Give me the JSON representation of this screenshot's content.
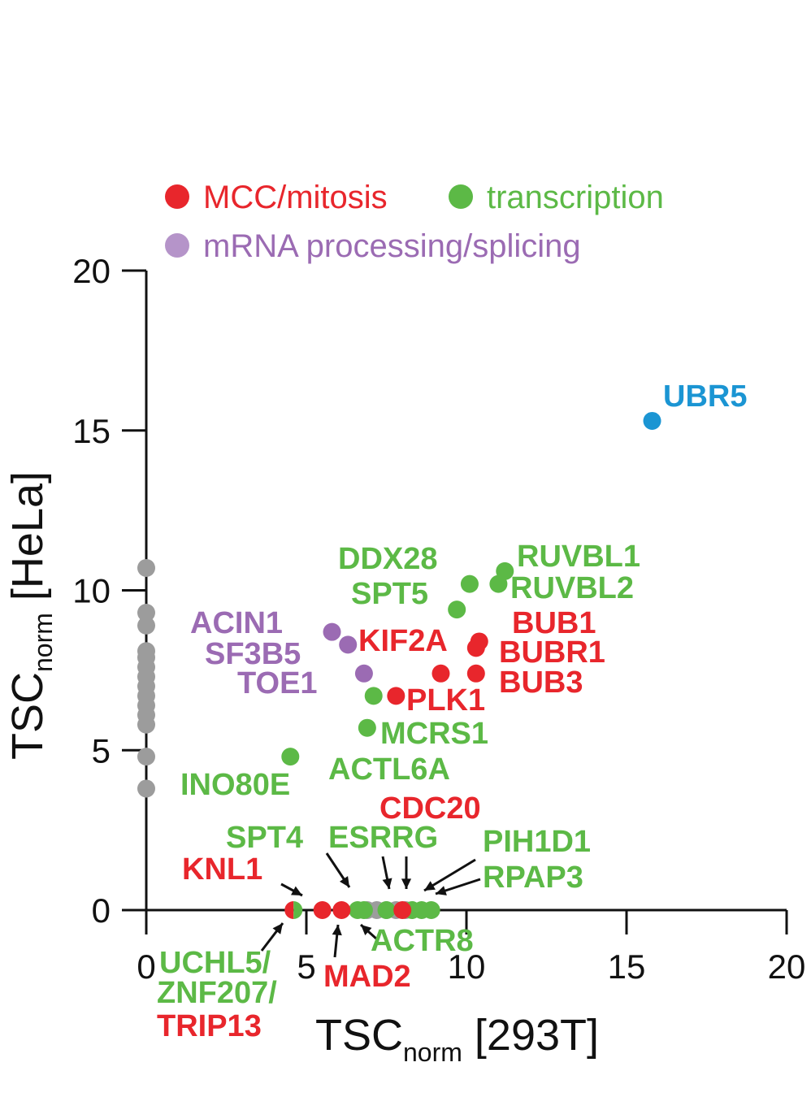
{
  "chart_data": {
    "type": "scatter",
    "xlabel": {
      "main": "TSC",
      "sub": "norm",
      "suffix": " [293T]"
    },
    "ylabel": {
      "main": "TSC",
      "sub": "norm",
      "suffix": " [HeLa]"
    },
    "xlim": [
      0,
      20
    ],
    "ylim": [
      0,
      20
    ],
    "xticks": [
      "0",
      "5",
      "10",
      "15",
      "20"
    ],
    "yticks": [
      "0",
      "5",
      "10",
      "15",
      "20"
    ],
    "grid": false,
    "legend_position": "top-left",
    "colors": {
      "mcc": "#e8262c",
      "transcription": "#5cb946",
      "mrna": "#9b6bb3",
      "mrna_legend": "#b594c9",
      "ubr5": "#1b95d3",
      "other": "#9c9c9c"
    },
    "legend": [
      {
        "key": "mcc",
        "label": "MCC/mitosis"
      },
      {
        "key": "transcription",
        "label": "transcription"
      },
      {
        "key": "mrna",
        "label": "mRNA processing/splicing"
      }
    ],
    "points": [
      {
        "x": 15.8,
        "y": 15.3,
        "cat": "ubr5"
      },
      {
        "x": 10.1,
        "y": 10.2,
        "cat": "transcription"
      },
      {
        "x": 11.2,
        "y": 10.6,
        "cat": "transcription"
      },
      {
        "x": 11.0,
        "y": 10.2,
        "cat": "transcription"
      },
      {
        "x": 9.7,
        "y": 9.4,
        "cat": "transcription"
      },
      {
        "x": 10.4,
        "y": 8.4,
        "cat": "mcc"
      },
      {
        "x": 10.3,
        "y": 8.2,
        "cat": "mcc"
      },
      {
        "x": 9.2,
        "y": 7.4,
        "cat": "mcc"
      },
      {
        "x": 10.3,
        "y": 7.4,
        "cat": "mcc"
      },
      {
        "x": 7.8,
        "y": 6.7,
        "cat": "mcc"
      },
      {
        "x": 7.1,
        "y": 6.7,
        "cat": "transcription"
      },
      {
        "x": 6.9,
        "y": 5.7,
        "cat": "transcription"
      },
      {
        "x": 4.5,
        "y": 4.8,
        "cat": "transcription"
      },
      {
        "x": 5.8,
        "y": 8.7,
        "cat": "mrna"
      },
      {
        "x": 6.3,
        "y": 8.3,
        "cat": "mrna"
      },
      {
        "x": 6.8,
        "y": 7.4,
        "cat": "mrna"
      },
      {
        "x": 0,
        "y": 10.7,
        "cat": "other"
      },
      {
        "x": 0,
        "y": 9.3,
        "cat": "other"
      },
      {
        "x": 0,
        "y": 8.9,
        "cat": "other"
      },
      {
        "x": 0,
        "y": 8.1,
        "cat": "other"
      },
      {
        "x": 0,
        "y": 7.9,
        "cat": "other"
      },
      {
        "x": 0,
        "y": 7.6,
        "cat": "other"
      },
      {
        "x": 0,
        "y": 7.3,
        "cat": "other"
      },
      {
        "x": 0,
        "y": 7.0,
        "cat": "other"
      },
      {
        "x": 0,
        "y": 6.7,
        "cat": "other"
      },
      {
        "x": 0,
        "y": 6.4,
        "cat": "other"
      },
      {
        "x": 0,
        "y": 6.1,
        "cat": "other"
      },
      {
        "x": 0,
        "y": 5.8,
        "cat": "other"
      },
      {
        "x": 0,
        "y": 4.8,
        "cat": "other"
      },
      {
        "x": 0,
        "y": 3.8,
        "cat": "other"
      },
      {
        "x": 6.9,
        "y": 0,
        "cat": "other"
      },
      {
        "x": 7.2,
        "y": 0,
        "cat": "other"
      },
      {
        "x": 7.5,
        "y": 0,
        "cat": "other"
      },
      {
        "x": 7.8,
        "y": 0,
        "cat": "other"
      },
      {
        "x": 8.1,
        "y": 0,
        "cat": "other"
      },
      {
        "x": 6.6,
        "y": 0,
        "cat": "transcription"
      },
      {
        "x": 6.8,
        "y": 0,
        "cat": "transcription"
      },
      {
        "x": 7.5,
        "y": 0,
        "cat": "transcription"
      },
      {
        "x": 8.3,
        "y": 0,
        "cat": "transcription"
      },
      {
        "x": 8.6,
        "y": 0,
        "cat": "transcription"
      },
      {
        "x": 8.9,
        "y": 0,
        "cat": "transcription"
      },
      {
        "x": 5.5,
        "y": 0,
        "cat": "mcc"
      },
      {
        "x": 6.1,
        "y": 0,
        "cat": "mcc"
      },
      {
        "x": 8.0,
        "y": 0,
        "cat": "mcc"
      },
      {
        "x": 4.6,
        "y": 0,
        "cat": "split"
      }
    ],
    "labels": [
      {
        "text": "UBR5",
        "cat": "ubr5"
      },
      {
        "text": "DDX28",
        "cat": "transcription"
      },
      {
        "text": "SPT5",
        "cat": "transcription"
      },
      {
        "text": "RUVBL1",
        "cat": "transcription"
      },
      {
        "text": "RUVBL2",
        "cat": "transcription"
      },
      {
        "text": "BUB1",
        "cat": "mcc"
      },
      {
        "text": "BUBR1",
        "cat": "mcc"
      },
      {
        "text": "BUB3",
        "cat": "mcc"
      },
      {
        "text": "KIF2A",
        "cat": "mcc"
      },
      {
        "text": "PLK1",
        "cat": "mcc"
      },
      {
        "text": "ACIN1",
        "cat": "mrna"
      },
      {
        "text": "SF3B5",
        "cat": "mrna"
      },
      {
        "text": "TOE1",
        "cat": "mrna"
      },
      {
        "text": "MCRS1",
        "cat": "transcription"
      },
      {
        "text": "ACTL6A",
        "cat": "transcription"
      },
      {
        "text": "INO80E",
        "cat": "transcription"
      },
      {
        "text": "CDC20",
        "cat": "mcc"
      },
      {
        "text": "SPT4",
        "cat": "transcription"
      },
      {
        "text": "ESRRG",
        "cat": "transcription"
      },
      {
        "text": "PIH1D1",
        "cat": "transcription"
      },
      {
        "text": "RPAP3",
        "cat": "transcription"
      },
      {
        "text": "KNL1",
        "cat": "mcc"
      },
      {
        "text": "ACTR8",
        "cat": "transcription"
      },
      {
        "text": "UCHL5/",
        "cat": "transcription"
      },
      {
        "text": "ZNF207/",
        "cat": "transcription"
      },
      {
        "text": "TRIP13",
        "cat": "mcc"
      },
      {
        "text": "MAD2",
        "cat": "mcc"
      }
    ]
  }
}
